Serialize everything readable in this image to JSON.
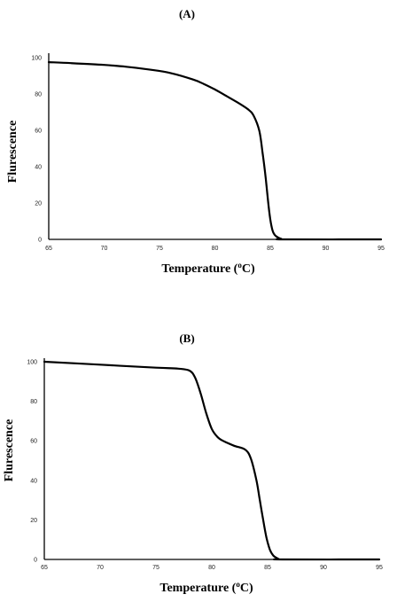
{
  "chart_data": [
    {
      "type": "line",
      "panel_label": "(A)",
      "xlabel": "Temperature (",
      "xlabel_sup": "o",
      "xlabel_end": "C)",
      "ylabel": "Flurescence",
      "xlim": [
        65,
        95
      ],
      "ylim": [
        0,
        100
      ],
      "xticks": [
        "65",
        "70",
        "75",
        "80",
        "85",
        "90",
        "95"
      ],
      "yticks": [
        "0",
        "20",
        "40",
        "60",
        "80",
        "100"
      ],
      "series": [
        {
          "x": [
            65,
            67,
            70,
            72,
            74,
            76,
            78,
            79,
            80,
            81,
            82,
            83,
            83.5,
            84,
            84.3,
            84.6,
            84.8,
            85,
            85.2,
            85.4,
            85.7,
            86,
            86.3,
            95
          ],
          "y": [
            97.5,
            97,
            96,
            95,
            93.5,
            91.5,
            88,
            85.5,
            82.5,
            79,
            75.5,
            71.5,
            68,
            60,
            48,
            33,
            21,
            11,
            5,
            2.5,
            1,
            0.3,
            0,
            0
          ]
        }
      ]
    },
    {
      "type": "line",
      "panel_label": "(B)",
      "xlabel": "Temperature (",
      "xlabel_sup": "o",
      "xlabel_end": "C)",
      "ylabel": "Flurescence",
      "xlim": [
        65,
        95
      ],
      "ylim": [
        0,
        100
      ],
      "xticks": [
        "65",
        "70",
        "75",
        "80",
        "85",
        "90",
        "95"
      ],
      "yticks": [
        "0",
        "20",
        "40",
        "60",
        "80",
        "100"
      ],
      "series": [
        {
          "x": [
            65,
            70,
            75,
            77,
            78,
            78.5,
            79,
            79.5,
            80,
            80.5,
            81,
            82,
            83,
            83.5,
            84,
            84.3,
            84.6,
            84.9,
            85.2,
            85.5,
            85.8,
            86,
            86.3,
            95
          ],
          "y": [
            100,
            98.5,
            97,
            96.5,
            95.5,
            92,
            84,
            74,
            66,
            62,
            60,
            57.5,
            55.5,
            51,
            40,
            30,
            20,
            11,
            5,
            2,
            0.8,
            0.2,
            0,
            0
          ]
        }
      ]
    }
  ]
}
